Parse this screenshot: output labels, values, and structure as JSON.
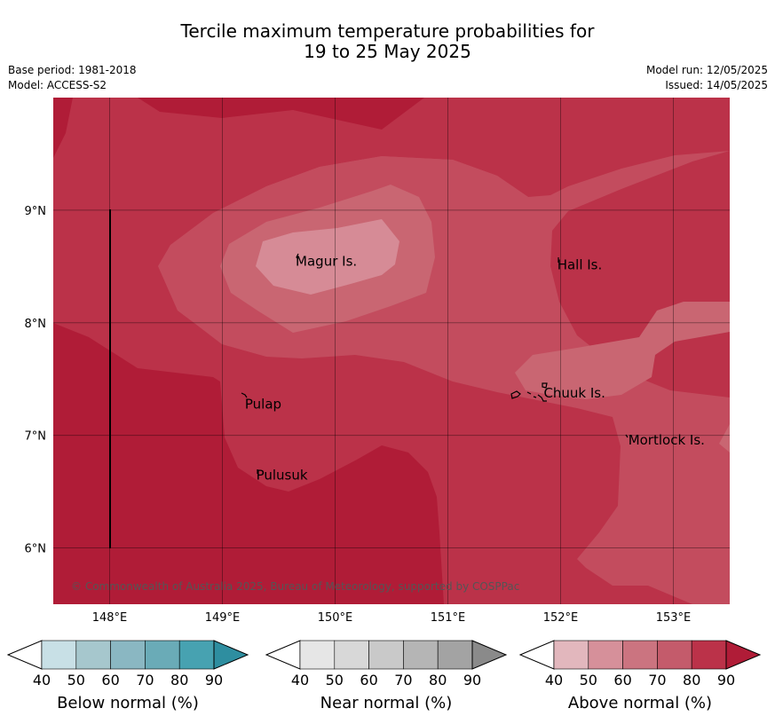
{
  "title": {
    "line1": "Tercile maximum temperature probabilities for",
    "line2": "19 to 25 May 2025"
  },
  "meta": {
    "base_period": "Base period: 1981-2018",
    "model": "Model: ACCESS-S2",
    "model_run": "Model run: 12/05/2025",
    "issued": "Issued: 14/05/2025"
  },
  "map": {
    "lon_range": [
      147.5,
      153.5
    ],
    "lat_range": [
      5.5,
      10.0
    ],
    "lon_ticks": [
      {
        "value": 148,
        "label": "148°E"
      },
      {
        "value": 149,
        "label": "149°E"
      },
      {
        "value": 150,
        "label": "150°E"
      },
      {
        "value": 151,
        "label": "151°E"
      },
      {
        "value": 152,
        "label": "152°E"
      },
      {
        "value": 153,
        "label": "153°E"
      }
    ],
    "lat_ticks": [
      {
        "value": 9,
        "label": "9°N"
      },
      {
        "value": 8,
        "label": "8°N"
      },
      {
        "value": 7,
        "label": "7°N"
      },
      {
        "value": 6,
        "label": "6°N"
      }
    ],
    "places": [
      {
        "name": "Magur Is.",
        "lon": 149.65,
        "lat": 8.57
      },
      {
        "name": "Hall Is.",
        "lon": 151.97,
        "lat": 8.54
      },
      {
        "name": "Pulap",
        "lon": 149.2,
        "lat": 7.3
      },
      {
        "name": "Chuuk Is.",
        "lon": 151.85,
        "lat": 7.4
      },
      {
        "name": "Mortlock Is.",
        "lon": 152.6,
        "lat": 6.98
      },
      {
        "name": "Pulusuk",
        "lon": 149.3,
        "lat": 6.67
      }
    ],
    "copyright": "© Commonwealth of Australia 2025, Bureau of Meteorology, supported by COSPPac",
    "field_colors": {
      "above_90": "#b01c37",
      "above_80": "#bb3249",
      "above_70": "#c34c5e",
      "above_60": "#c96672",
      "above_50": "#d68b96"
    }
  },
  "legends": [
    {
      "label": "Below normal (%)",
      "ticks": [
        "40",
        "50",
        "60",
        "70",
        "80",
        "90"
      ],
      "colors": [
        "#ffffff",
        "#c8e0e6",
        "#a6c7cd",
        "#8ab7c2",
        "#6aabb7",
        "#47a2b1",
        "#2e8ea0"
      ]
    },
    {
      "label": "Near normal (%)",
      "ticks": [
        "40",
        "50",
        "60",
        "70",
        "80",
        "90"
      ],
      "colors": [
        "#ffffff",
        "#e6e6e6",
        "#d8d8d8",
        "#c9c9c9",
        "#b5b5b5",
        "#a3a3a3",
        "#8a8a8a"
      ]
    },
    {
      "label": "Above normal (%)",
      "ticks": [
        "40",
        "50",
        "60",
        "70",
        "80",
        "90"
      ],
      "colors": [
        "#ffffff",
        "#e2b7bd",
        "#d6909a",
        "#cb7480",
        "#c45b6b",
        "#bb3249",
        "#b01c37"
      ]
    }
  ]
}
